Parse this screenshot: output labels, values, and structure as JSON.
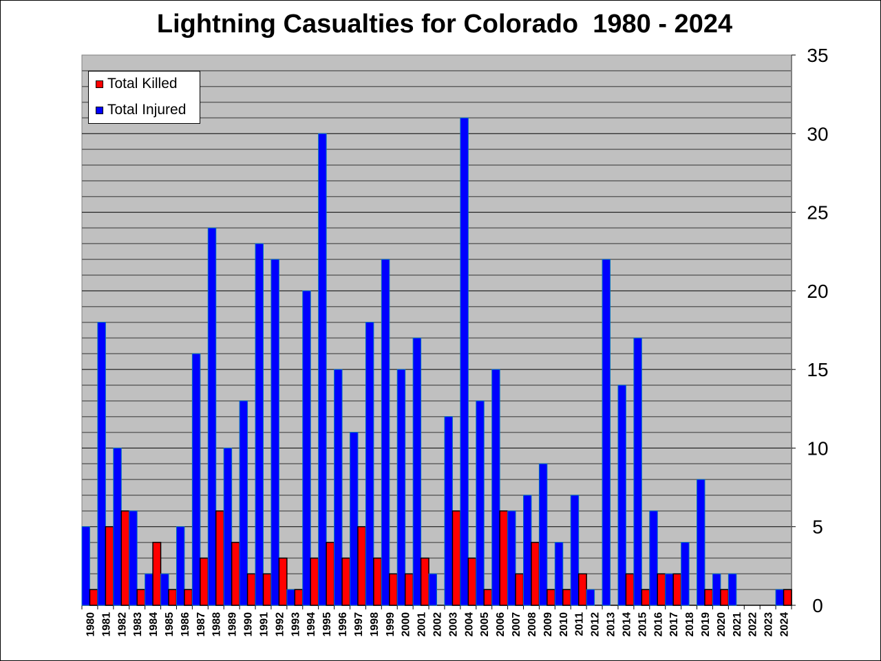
{
  "chart_data": {
    "type": "bar",
    "title": "Lightning Casualties for Colorado  1980 - 2024",
    "xlabel": "",
    "ylabel": "",
    "ylim": [
      0,
      35
    ],
    "yticks": [
      0,
      5,
      10,
      15,
      20,
      25,
      30,
      35
    ],
    "y_axis_side": "right",
    "grid": true,
    "legend_position": "top-left",
    "plot_background": "#c0c0c0",
    "categories": [
      "1980",
      "1981",
      "1982",
      "1983",
      "1984",
      "1985",
      "1986",
      "1987",
      "1988",
      "1989",
      "1990",
      "1991",
      "1992",
      "1993",
      "1994",
      "1995",
      "1996",
      "1997",
      "1998",
      "1999",
      "2000",
      "2001",
      "2002",
      "2003",
      "2004",
      "2005",
      "2006",
      "2007",
      "2008",
      "2009",
      "2010",
      "2011",
      "2012",
      "2013",
      "2014",
      "2015",
      "2016",
      "2017",
      "2018",
      "2019",
      "2020",
      "2021",
      "2022",
      "2023",
      "2024"
    ],
    "series": [
      {
        "name": "Total Killed",
        "color": "#ff0000",
        "values": [
          1,
          5,
          6,
          1,
          4,
          1,
          1,
          3,
          6,
          4,
          2,
          2,
          3,
          1,
          3,
          4,
          3,
          5,
          3,
          2,
          2,
          3,
          0,
          6,
          3,
          1,
          6,
          2,
          4,
          1,
          1,
          2,
          0,
          0,
          2,
          1,
          2,
          2,
          0,
          1,
          1,
          0,
          0,
          0,
          1
        ]
      },
      {
        "name": "Total Injured",
        "color": "#0000ff",
        "values": [
          5,
          18,
          10,
          6,
          2,
          2,
          5,
          16,
          24,
          10,
          13,
          23,
          22,
          1,
          20,
          30,
          15,
          11,
          18,
          22,
          15,
          17,
          2,
          12,
          31,
          13,
          15,
          6,
          7,
          9,
          4,
          7,
          1,
          22,
          14,
          17,
          6,
          2,
          4,
          8,
          2,
          2,
          0,
          0,
          1
        ]
      }
    ]
  }
}
